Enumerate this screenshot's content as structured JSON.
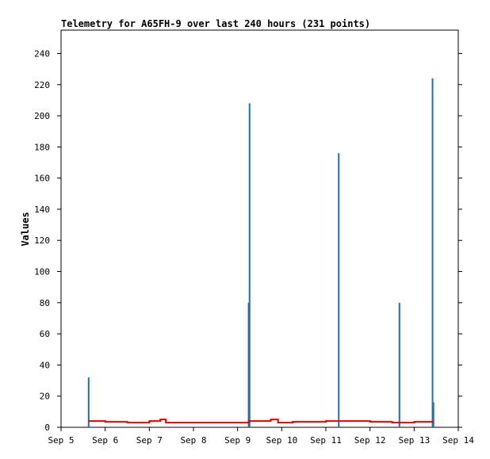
{
  "chart_data": {
    "type": "line",
    "title": "Telemetry for A65FH-9 over last 240 hours (231 points)",
    "xlabel": "",
    "ylabel": "Values",
    "x_ticks": [
      "Sep 5",
      "Sep 6",
      "Sep 7",
      "Sep 8",
      "Sep 9",
      "Sep 10",
      "Sep 11",
      "Sep 12",
      "Sep 13",
      "Sep 14"
    ],
    "y_ticks": [
      0,
      20,
      40,
      60,
      80,
      100,
      120,
      140,
      160,
      180,
      200,
      220,
      240
    ],
    "xlim": [
      "Sep 5",
      "Sep 14"
    ],
    "ylim": [
      0,
      255
    ],
    "grid": false,
    "colors": {
      "spikes": "#1f6fb4",
      "baseline": "#e00000",
      "axis": "#000000",
      "background": "#ffffff"
    },
    "series": [
      {
        "type": "bar",
        "points": [
          {
            "x": "Sep 5 15:00",
            "y": 32
          },
          {
            "x": "Sep 9 06:00",
            "y": 80
          },
          {
            "x": "Sep 9 06:30",
            "y": 208
          },
          {
            "x": "Sep 11 07:00",
            "y": 176
          },
          {
            "x": "Sep 12 16:00",
            "y": 80
          },
          {
            "x": "Sep 13 10:00",
            "y": 224
          },
          {
            "x": "Sep 13 10:30",
            "y": 16
          }
        ]
      },
      {
        "type": "line",
        "points": [
          {
            "x": "Sep 5 15:00",
            "y": 4
          },
          {
            "x": "Sep 6 00:00",
            "y": 3.5
          },
          {
            "x": "Sep 6 12:00",
            "y": 3
          },
          {
            "x": "Sep 7 00:00",
            "y": 4
          },
          {
            "x": "Sep 7 06:00",
            "y": 5
          },
          {
            "x": "Sep 7 09:00",
            "y": 3
          },
          {
            "x": "Sep 8 00:00",
            "y": 3
          },
          {
            "x": "Sep 9 00:00",
            "y": 3
          },
          {
            "x": "Sep 9 06:00",
            "y": 4
          },
          {
            "x": "Sep 9 18:00",
            "y": 5
          },
          {
            "x": "Sep 9 22:00",
            "y": 3
          },
          {
            "x": "Sep 10 06:00",
            "y": 3.5
          },
          {
            "x": "Sep 11 00:00",
            "y": 4
          },
          {
            "x": "Sep 11 12:00",
            "y": 4
          },
          {
            "x": "Sep 12 00:00",
            "y": 3.5
          },
          {
            "x": "Sep 12 12:00",
            "y": 3
          },
          {
            "x": "Sep 13 00:00",
            "y": 3.5
          },
          {
            "x": "Sep 13 10:00",
            "y": 3
          }
        ]
      }
    ]
  }
}
